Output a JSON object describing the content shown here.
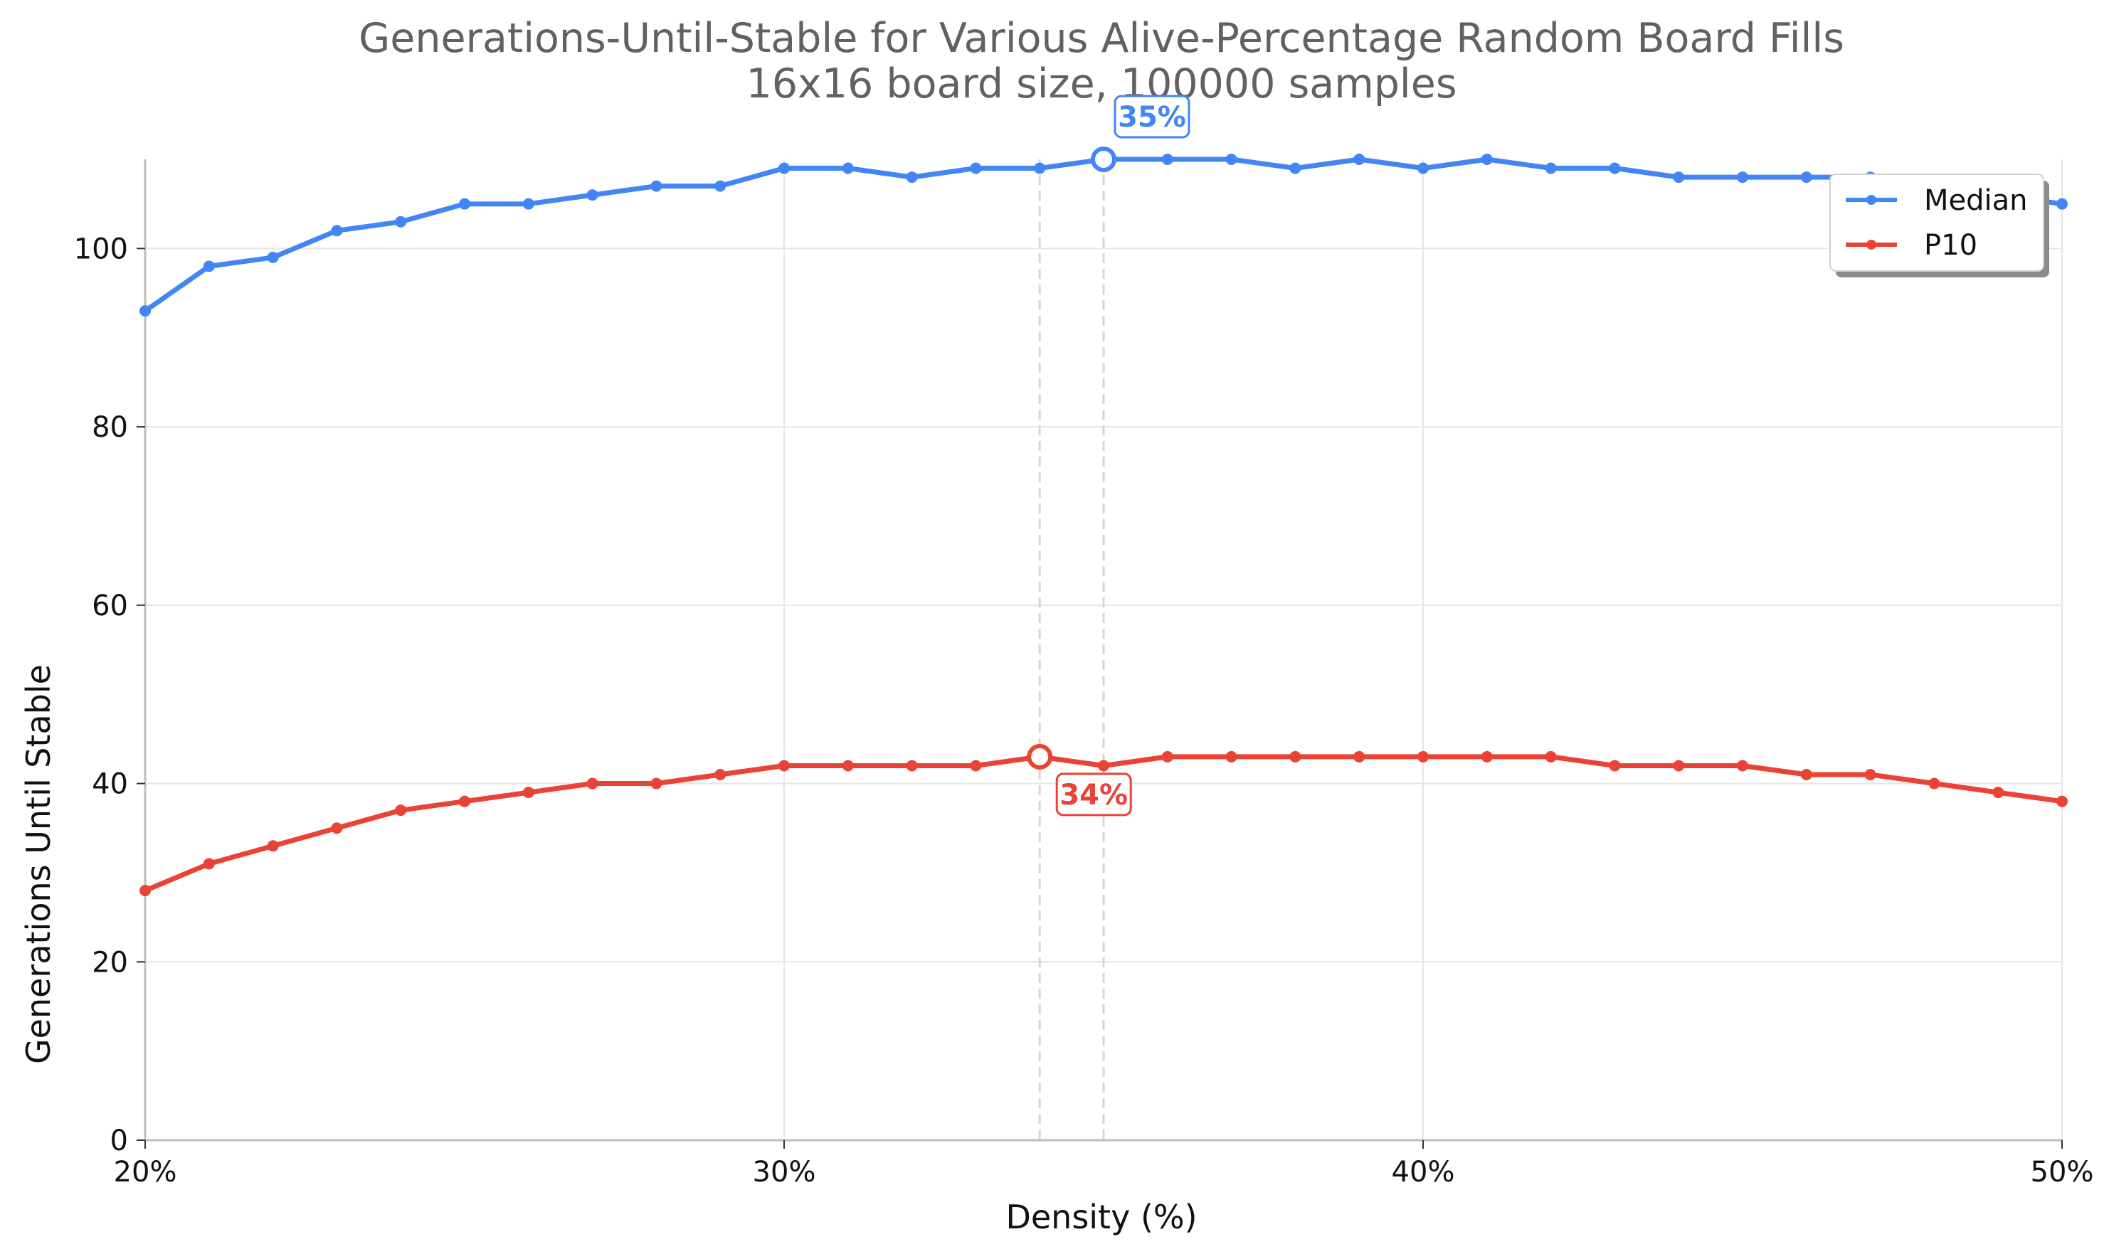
{
  "chart_data": {
    "type": "line",
    "title": "Generations-Until-Stable for Various Alive-Percentage Random Board Fills",
    "subtitle": "16x16 board size, 100000 samples",
    "xlabel": "Density (%)",
    "ylabel": "Generations Until Stable",
    "x_unit": "%",
    "xlim": [
      20,
      50
    ],
    "ylim": [
      0,
      110
    ],
    "xticks": [
      "20%",
      "30%",
      "40%",
      "50%"
    ],
    "xtick_values": [
      20,
      30,
      40,
      50
    ],
    "yticks": [
      0,
      20,
      40,
      60,
      80,
      100
    ],
    "grid": true,
    "legend_position": "upper right",
    "x": [
      20,
      21,
      22,
      23,
      24,
      25,
      26,
      27,
      28,
      29,
      30,
      31,
      32,
      33,
      34,
      35,
      36,
      37,
      38,
      39,
      40,
      41,
      42,
      43,
      44,
      45,
      46,
      47,
      48,
      49,
      50
    ],
    "series": [
      {
        "name": "Median",
        "color": "#4285f4",
        "values": [
          93,
          98,
          99,
          102,
          103,
          105,
          105,
          106,
          107,
          107,
          109,
          109,
          108,
          109,
          109,
          110,
          110,
          110,
          109,
          110,
          109,
          110,
          109,
          109,
          108,
          108,
          108,
          108,
          107,
          106,
          105
        ],
        "peak_x": 35,
        "peak_label": "35%"
      },
      {
        "name": "P10",
        "color": "#ea4335",
        "values": [
          28,
          31,
          33,
          35,
          37,
          38,
          39,
          40,
          40,
          41,
          42,
          42,
          42,
          42,
          43,
          42,
          43,
          43,
          43,
          43,
          43,
          43,
          43,
          42,
          42,
          42,
          41,
          41,
          40,
          39,
          38
        ],
        "peak_x": 34,
        "peak_label": "34%"
      }
    ]
  }
}
